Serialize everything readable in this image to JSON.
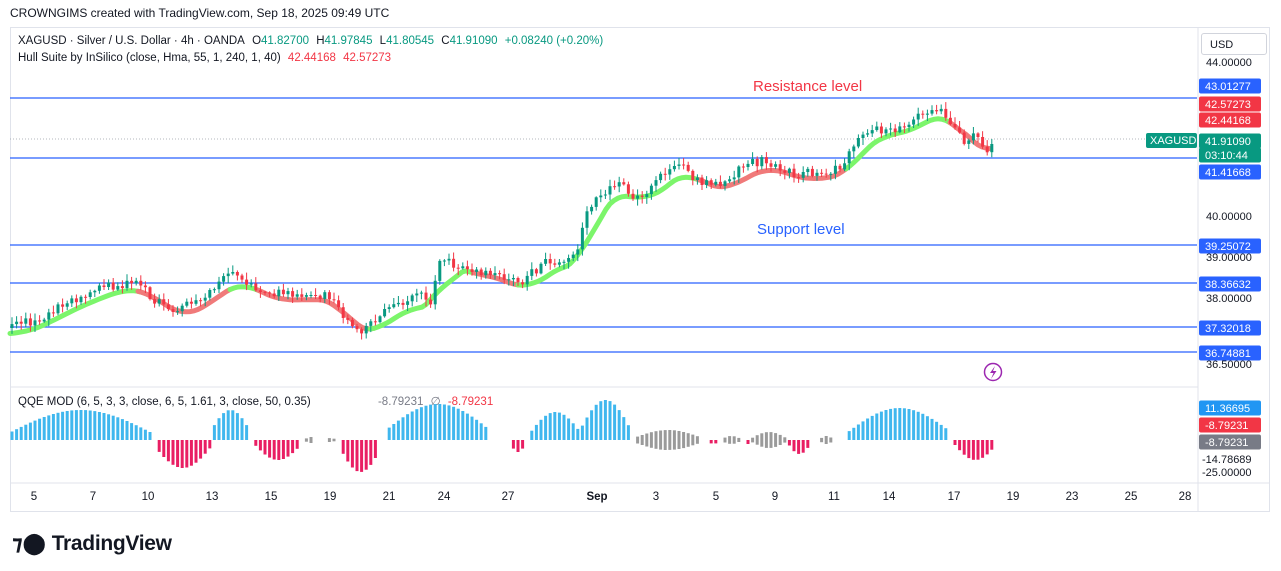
{
  "header": {
    "attribution": "CROWNGIMS created with TradingView.com, Sep 18, 2025 09:49 UTC"
  },
  "symbol": {
    "title": "XAGUSD · Silver / U.S. Dollar · 4h · OANDA",
    "o_label": "O",
    "o": "41.82700",
    "h_label": "H",
    "h": "41.97845",
    "l_label": "L",
    "l": "41.80545",
    "c_label": "C",
    "c": "41.91090",
    "change": "+0.08240 (+0.20%)"
  },
  "hull": {
    "label": "Hull Suite by InSilico (close, Hma, 55, 1, 240, 1, 40)",
    "v1": "42.44168",
    "v2": "42.57273"
  },
  "qqe": {
    "label": "QQE MOD (6, 5, 3, 3, close, 6, 5, 1.61, 3, close, 50, 0.35)",
    "v1": "-8.79231",
    "sym": "∅",
    "v2": "-8.79231"
  },
  "currency": "USD",
  "annotations": {
    "resistance": "Resistance level",
    "support": "Support level"
  },
  "price_axis": {
    "ticks": [
      "44.00000",
      "40.00000",
      "39.00000",
      "38.00000",
      "36.50000"
    ],
    "labels": [
      {
        "text": "43.01277",
        "color": "#2962ff"
      },
      {
        "text": "42.57273",
        "color": "#f23645"
      },
      {
        "text": "42.44168",
        "color": "#f23645"
      },
      {
        "text": "41.91090",
        "color": "#089981"
      },
      {
        "text": "03:10:44",
        "color": "#089981"
      },
      {
        "text": "41.41668",
        "color": "#2962ff"
      },
      {
        "text": "39.25072",
        "color": "#2962ff"
      },
      {
        "text": "38.36632",
        "color": "#2962ff"
      },
      {
        "text": "37.32018",
        "color": "#2962ff"
      },
      {
        "text": "36.74881",
        "color": "#2962ff"
      }
    ],
    "symbol_tag": "XAGUSD"
  },
  "qqe_axis": {
    "labels": [
      {
        "text": "11.36695",
        "color": "#2196f3"
      },
      {
        "text": "-8.79231",
        "color": "#f23645"
      },
      {
        "text": "-8.79231",
        "color": "#787b86"
      }
    ],
    "ticks": [
      "-14.78689",
      "-25.00000"
    ]
  },
  "time_axis": [
    "5",
    "7",
    "10",
    "13",
    "15",
    "19",
    "21",
    "24",
    "27",
    "Sep",
    "3",
    "5",
    "9",
    "11",
    "14",
    "17",
    "19",
    "23",
    "25",
    "28"
  ],
  "colors": {
    "up": "#089981",
    "down": "#f23645",
    "level": "#2962ff",
    "hull_up": "#7cf56b",
    "hull_down": "#f07a7a",
    "qqe_up": "#3fb7ee",
    "qqe_down": "#e91e63",
    "qqe_neutral": "#9a9a9a"
  },
  "chart_data": {
    "type": "candlestick",
    "levels": [
      43.01277,
      41.41668,
      39.25072,
      38.36632,
      37.32018,
      36.74881
    ],
    "last_price": 41.9109
  },
  "logo": {
    "text": "TradingView"
  }
}
